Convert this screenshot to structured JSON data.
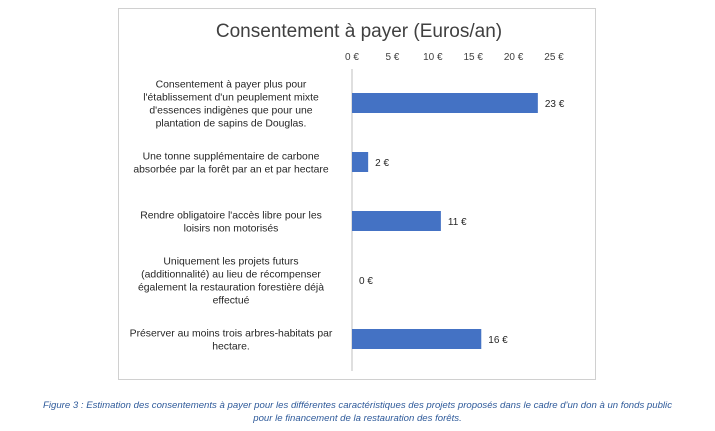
{
  "chart_data": {
    "type": "bar",
    "orientation": "horizontal",
    "title": "Consentement à payer (Euros/an)",
    "xlim": [
      0,
      25
    ],
    "xticks": [
      0,
      5,
      10,
      15,
      20,
      25
    ],
    "tick_labels": [
      "0 €",
      "5 €",
      "10 €",
      "15 €",
      "20 €",
      "25 €"
    ],
    "axis_position": "top",
    "grid": false,
    "bar_color": "#4472c4",
    "categories": [
      [
        "Consentement à payer plus pour",
        "l'établissement d'un peuplement mixte",
        "d'essences indigènes que pour une",
        "plantation de sapins de Douglas."
      ],
      [
        "Une tonne supplémentaire de carbone",
        "absorbée par la forêt par an et par hectare"
      ],
      [
        "Rendre obligatoire l'accès libre pour les",
        "loisirs non motorisés"
      ],
      [
        "Uniquement les projets futurs",
        "(additionnalité) au lieu de récompenser",
        "également la restauration forestière déjà",
        "effectué"
      ],
      [
        "Préserver au moins trois arbres-habitats par",
        "hectare."
      ]
    ],
    "values": [
      23,
      2,
      11,
      0,
      16
    ],
    "data_labels": [
      "23 €",
      "2 €",
      "11 €",
      "0 €",
      "16 €"
    ]
  },
  "caption": {
    "line1": "Figure 3 : Estimation des consentements à payer pour les différentes caractéristiques des projets proposés dans le cadre d'un don à un fonds public",
    "line2": "pour le financement de la restauration des forêts."
  }
}
